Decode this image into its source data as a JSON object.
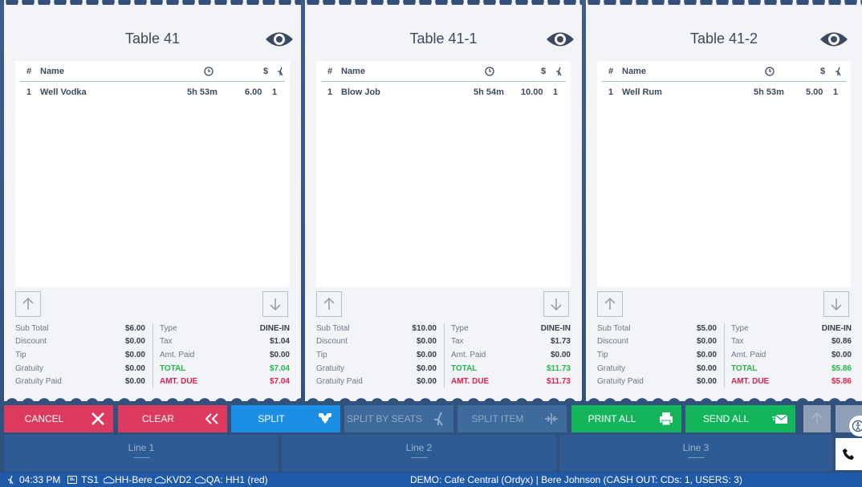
{
  "tickets": [
    {
      "title": "Table 41",
      "headers": {
        "num": "#",
        "name": "Name",
        "price": "$"
      },
      "items": [
        {
          "num": "1",
          "name": "Well Vodka",
          "time": "5h 53m",
          "price": "6.00",
          "seat": "1"
        }
      ],
      "totals": {
        "subtotal": "$6.00",
        "discount": "$0.00",
        "tip": "$0.00",
        "gratuity": "$0.00",
        "gratuity_paid": "$0.00",
        "type": "DINE-IN",
        "tax": "$1.04",
        "amt_paid": "$0.00",
        "total": "$7.04",
        "amt_due": "$7.04"
      }
    },
    {
      "title": "Table 41-1",
      "headers": {
        "num": "#",
        "name": "Name",
        "price": "$"
      },
      "items": [
        {
          "num": "1",
          "name": "Blow Job",
          "time": "5h 54m",
          "price": "10.00",
          "seat": "1"
        }
      ],
      "totals": {
        "subtotal": "$10.00",
        "discount": "$0.00",
        "tip": "$0.00",
        "gratuity": "$0.00",
        "gratuity_paid": "$0.00",
        "type": "DINE-IN",
        "tax": "$1.73",
        "amt_paid": "$0.00",
        "total": "$11.73",
        "amt_due": "$11.73"
      }
    },
    {
      "title": "Table 41-2",
      "headers": {
        "num": "#",
        "name": "Name",
        "price": "$"
      },
      "items": [
        {
          "num": "1",
          "name": "Well Rum",
          "time": "5h 53m",
          "price": "5.00",
          "seat": "1"
        }
      ],
      "totals": {
        "subtotal": "$5.00",
        "discount": "$0.00",
        "tip": "$0.00",
        "gratuity": "$0.00",
        "gratuity_paid": "$0.00",
        "type": "DINE-IN",
        "tax": "$0.86",
        "amt_paid": "$0.00",
        "total": "$5.86",
        "amt_due": "$5.86"
      }
    }
  ],
  "total_labels": {
    "subtotal": "Sub Total",
    "discount": "Discount",
    "tip": "Tip",
    "gratuity": "Gratuity",
    "gratuity_paid": "Gratuity Paid",
    "type": "Type",
    "tax": "Tax",
    "amt_paid": "Amt. Paid",
    "total": "TOTAL",
    "amt_due": "AMT. DUE"
  },
  "buttons": {
    "cancel": "CANCEL",
    "clear": "CLEAR",
    "split": "SPLIT",
    "split_by_seats": "SPLIT BY SEATS",
    "split_item": "SPLIT ITEM",
    "print_all": "PRINT ALL",
    "send_all": "SEND ALL"
  },
  "lines": [
    {
      "label": "Line 1",
      "dashes": "----------"
    },
    {
      "label": "Line 2",
      "dashes": "----------"
    },
    {
      "label": "Line 3",
      "dashes": "----------"
    }
  ],
  "status": {
    "time": "04:33 PM",
    "terminal": "TS1",
    "printer1": "HH-Bere",
    "printer2": "KVD2",
    "printer3": "QA: HH1 (red)",
    "info": "DEMO: Cafe Central (Ordyx) | Bere Johnson (CASH OUT: CDs: 1, USERS: 3)"
  },
  "colors": {
    "cancel": "#dc3a5e",
    "clear": "#dc3a5e",
    "split": "#1c8ee3",
    "disabled": "#3f6a9c",
    "green": "#14b45a",
    "total": "#22b84b",
    "due": "#e0224e"
  }
}
